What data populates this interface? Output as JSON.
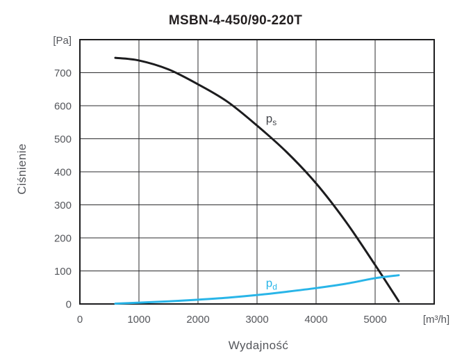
{
  "chart_data": {
    "type": "line",
    "title": "MSBN-4-450/90-220T",
    "xlabel": "Wydajność",
    "ylabel": "Ciśnienie",
    "x_unit": "[m³/h]",
    "y_unit": "[Pa]",
    "xlim": [
      0,
      6000
    ],
    "ylim": [
      0,
      800
    ],
    "x_grid_step": 1000,
    "y_grid_step": 100,
    "grid": true,
    "x_ticks_labeled": [
      0,
      1000,
      2000,
      3000,
      4000,
      5000
    ],
    "y_ticks_labeled": [
      0,
      100,
      200,
      300,
      400,
      500,
      600,
      700
    ],
    "series": [
      {
        "name": "ps",
        "label_main": "p",
        "label_sub": "s",
        "color": "#1c1c1e",
        "label_color": "#46484d",
        "label_at": [
          3150,
          550
        ],
        "points": [
          [
            600,
            745
          ],
          [
            1000,
            737
          ],
          [
            1500,
            710
          ],
          [
            2000,
            665
          ],
          [
            2500,
            612
          ],
          [
            3000,
            540
          ],
          [
            3500,
            460
          ],
          [
            4000,
            365
          ],
          [
            4500,
            250
          ],
          [
            5000,
            118
          ],
          [
            5400,
            8
          ]
        ]
      },
      {
        "name": "pd",
        "label_main": "p",
        "label_sub": "d",
        "color": "#29b5e8",
        "label_color": "#29b5e8",
        "label_at": [
          3150,
          52
        ],
        "points": [
          [
            600,
            1
          ],
          [
            1000,
            4
          ],
          [
            1500,
            8
          ],
          [
            2000,
            13
          ],
          [
            2500,
            19
          ],
          [
            3000,
            27
          ],
          [
            3500,
            37
          ],
          [
            4000,
            48
          ],
          [
            4500,
            61
          ],
          [
            5000,
            78
          ],
          [
            5400,
            87
          ]
        ]
      }
    ],
    "colors": {
      "grid": "#2b2b2d",
      "border": "#1c1c1e",
      "tick_label": "#54565b",
      "title": "#231f20"
    }
  }
}
